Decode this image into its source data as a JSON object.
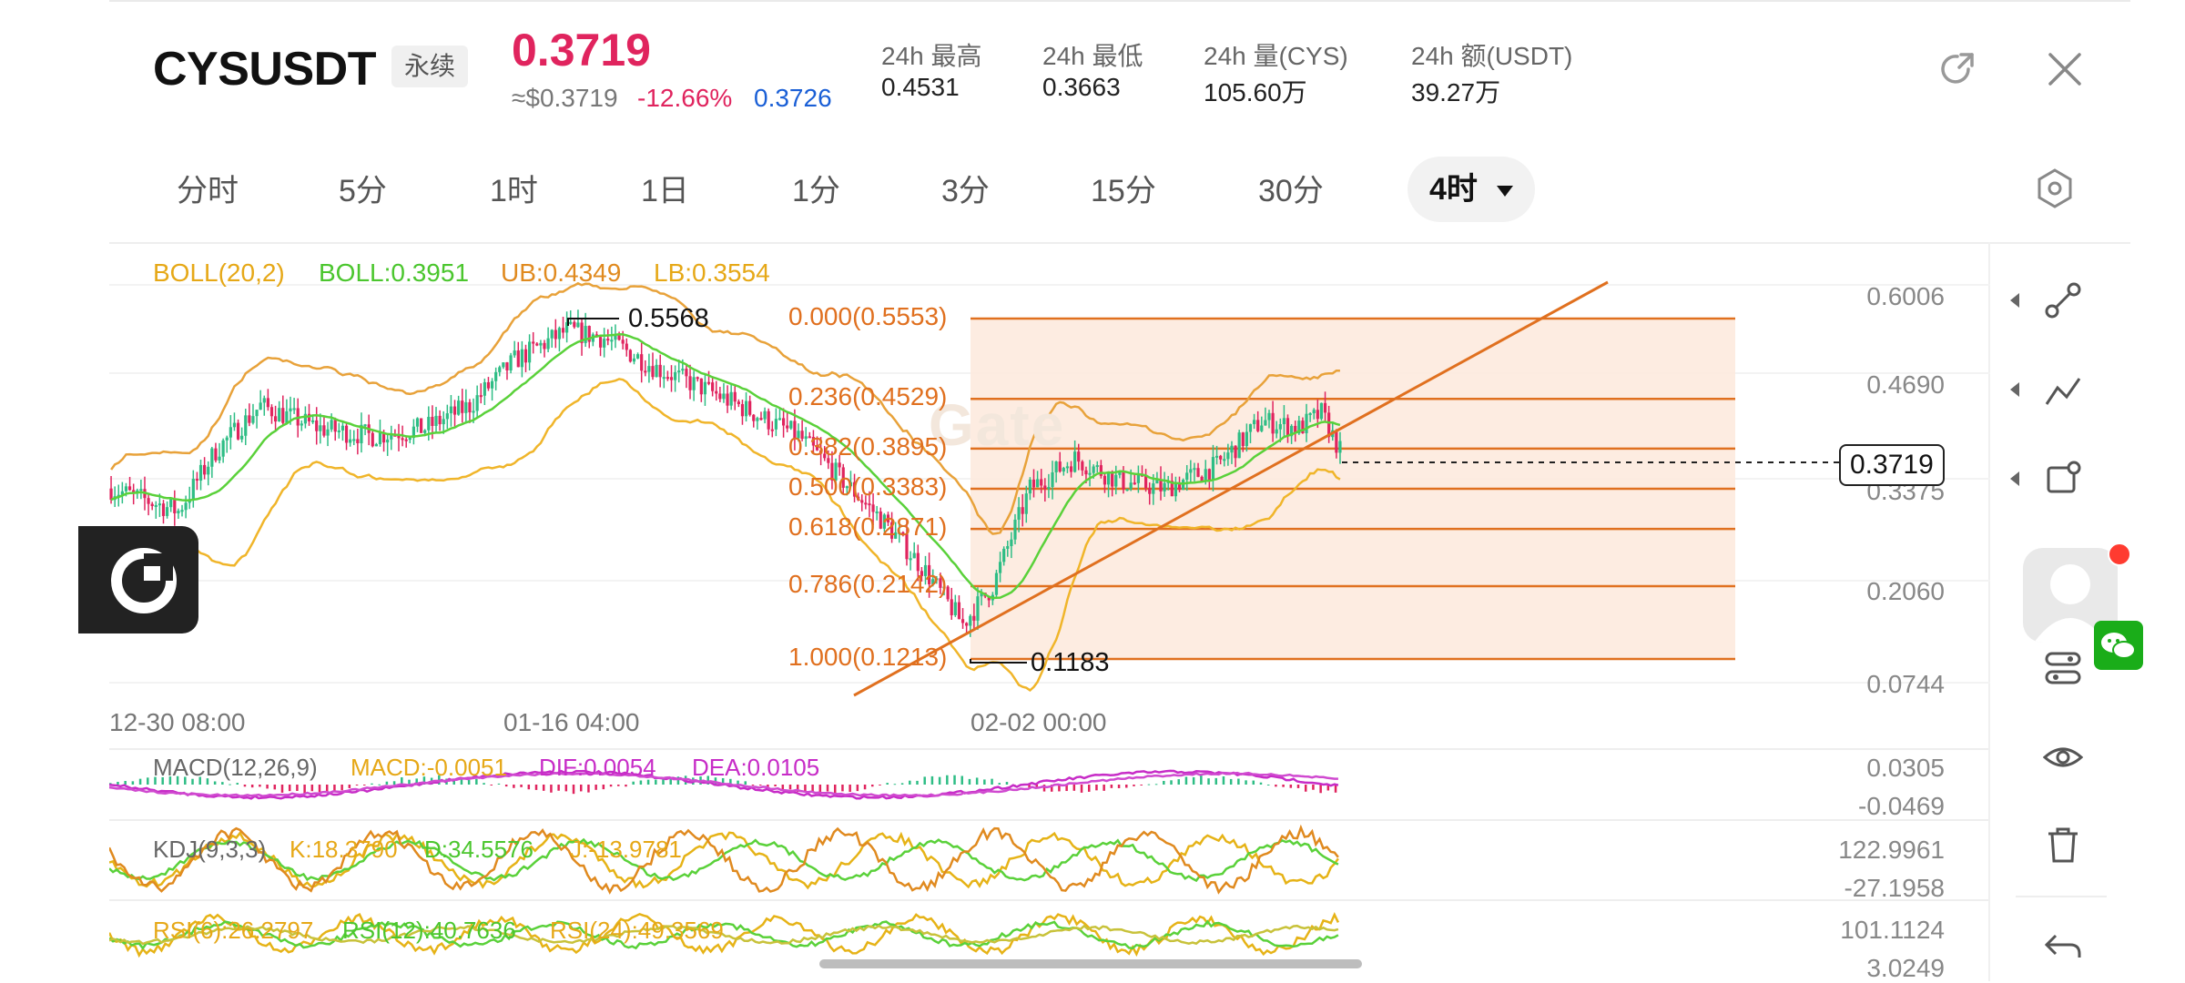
{
  "header": {
    "symbol": "CYSUSDT",
    "contract_tag": "永续",
    "last_price": "0.3719",
    "usd_price": "≈$0.3719",
    "change_pct": "-12.66%",
    "mark_price": "0.3726",
    "stats": [
      {
        "label": "24h  最高",
        "value": "0.4531"
      },
      {
        "label": "24h  最低",
        "value": "0.3663"
      },
      {
        "label": "24h  量(CYS)",
        "value": "105.60万"
      },
      {
        "label": "24h  额(USDT)",
        "value": "39.27万"
      }
    ],
    "icons": {
      "share": "share-icon",
      "close": "close-icon"
    }
  },
  "intervals": [
    "分时",
    "5分",
    "1时",
    "1日",
    "1分",
    "3分",
    "15分",
    "30分"
  ],
  "active_interval": "4时",
  "boll_legend": {
    "params": "BOLL(20,2)",
    "mid": "BOLL:0.3951",
    "ub": "UB:0.4349",
    "lb": "LB:0.3554"
  },
  "price_axis": [
    "0.6006",
    "0.4690",
    "0.3375",
    "0.2060",
    "0.0744"
  ],
  "time_axis": [
    "12-30 08:00",
    "01-16 04:00",
    "02-02 00:00"
  ],
  "current_price_tag": "0.3719",
  "watermark": "Gate",
  "high_marker": "0.5568",
  "low_marker": "0.1183",
  "fib_levels": [
    {
      "label": "0.000(0.5553)",
      "ratio": 0.0
    },
    {
      "label": "0.236(0.4529)",
      "ratio": 0.236
    },
    {
      "label": "0.382(0.3895)",
      "ratio": 0.382
    },
    {
      "label": "0.500(0.3383)",
      "ratio": 0.5
    },
    {
      "label": "0.618(0.2871)",
      "ratio": 0.618
    },
    {
      "label": "0.786(0.2142)",
      "ratio": 0.786
    },
    {
      "label": "1.000(0.1213)",
      "ratio": 1.0
    }
  ],
  "macd": {
    "params": "MACD(12,26,9)",
    "macd": "MACD:-0.0051",
    "dif": "DIF:0.0054",
    "dea": "DEA:0.0105",
    "axis": [
      "0.0305",
      "-0.0469"
    ]
  },
  "kdj": {
    "params": "KDJ(9,3,3)",
    "k": "K:18.3790",
    "d": "D:34.5576",
    "j": "J:-13.9781",
    "axis": [
      "122.9961",
      "-27.1958"
    ]
  },
  "rsi": {
    "params": "RSI(6):26.2797",
    "rsi12": "RSI(12):40.7636",
    "rsi24": "RSI(24):49.3569",
    "axis": [
      "101.1124",
      "3.0249"
    ]
  },
  "colors": {
    "up": "#2ebd85",
    "down": "#e0245e",
    "boll_mid": "#5ad13a",
    "boll_band": "#e8a23a",
    "fib": "#e0701f",
    "fib_fill": "#fde9dc",
    "price_red": "#e0245e",
    "mark_blue": "#1a5fd6",
    "legend_yellow": "#e6a817",
    "legend_green": "#4bc62e",
    "legend_orange": "#e08a1f",
    "macd_purple": "#c72cc7",
    "kdj_yellow": "#e6b317"
  },
  "side_tools": [
    "line-tool-icon",
    "polyline-tool-icon",
    "shape-tool-icon",
    "indicator-settings-icon",
    "eye-icon",
    "trash-icon",
    "undo-icon"
  ]
}
